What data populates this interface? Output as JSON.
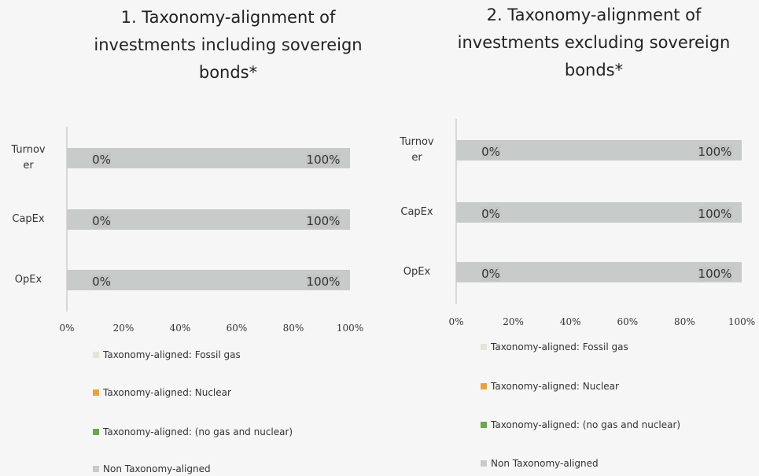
{
  "chart_data": [
    {
      "type": "bar",
      "title": "1. Taxonomy-alignment of investments including sovereign bonds*",
      "categories": [
        "Turnover",
        "CapEx",
        "OpEx"
      ],
      "series": [
        {
          "name": "Taxonomy-aligned: Fossil gas",
          "color": "#dfe8d8",
          "values": [
            0,
            0,
            0
          ]
        },
        {
          "name": "Taxonomy-aligned: Nuclear",
          "color": "#e8a33d",
          "values": [
            0,
            0,
            0
          ]
        },
        {
          "name": "Taxonomy-aligned: (no gas and nuclear)",
          "color": "#6aa84f",
          "values": [
            0,
            0,
            0
          ],
          "value_labels": [
            "0%",
            "0%",
            "0%"
          ]
        },
        {
          "name": "Non Taxonomy-aligned",
          "color": "#c7cbc9",
          "values": [
            100,
            100,
            100
          ],
          "value_labels": [
            "100%",
            "100%",
            "100%"
          ]
        }
      ],
      "xlim": [
        0,
        100
      ],
      "xticks": [
        {
          "value": 0,
          "label": "0%"
        },
        {
          "value": 20,
          "label": "20%"
        },
        {
          "value": 40,
          "label": "40%"
        },
        {
          "value": 60,
          "label": "60%"
        },
        {
          "value": 80,
          "label": "80%"
        },
        {
          "value": 100,
          "label": "100%"
        }
      ]
    },
    {
      "type": "bar",
      "title": "2. Taxonomy-alignment of investments excluding sovereign bonds*",
      "categories": [
        "Turnover",
        "CapEx",
        "OpEx"
      ],
      "series": [
        {
          "name": "Taxonomy-aligned: Fossil gas",
          "color": "#dfe8d8",
          "values": [
            0,
            0,
            0
          ]
        },
        {
          "name": "Taxonomy-aligned: Nuclear",
          "color": "#e8a33d",
          "values": [
            0,
            0,
            0
          ]
        },
        {
          "name": "Taxonomy-aligned: (no gas and nuclear)",
          "color": "#6aa84f",
          "values": [
            0,
            0,
            0
          ],
          "value_labels": [
            "0%",
            "0%",
            "0%"
          ]
        },
        {
          "name": "Non Taxonomy-aligned",
          "color": "#c7cbc9",
          "values": [
            100,
            100,
            100
          ],
          "value_labels": [
            "100%",
            "100%",
            "100%"
          ]
        }
      ],
      "xlim": [
        0,
        100
      ],
      "xticks": [
        {
          "value": 0,
          "label": "0%"
        },
        {
          "value": 20,
          "label": "20%"
        },
        {
          "value": 40,
          "label": "40%"
        },
        {
          "value": 60,
          "label": "60%"
        },
        {
          "value": 80,
          "label": "80%"
        },
        {
          "value": 100,
          "label": "100%"
        }
      ]
    }
  ]
}
